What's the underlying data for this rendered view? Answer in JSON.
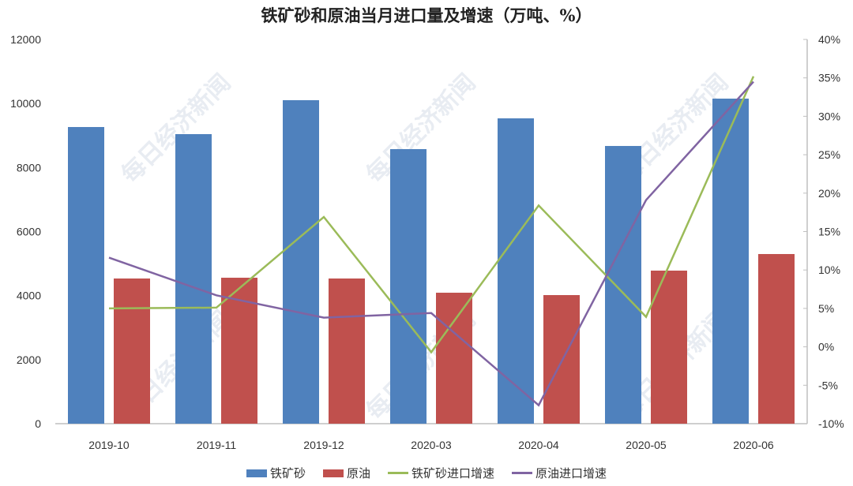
{
  "chart_data": {
    "type": "bar",
    "title": "铁矿砂和原油当月进口量及增速（万吨、%）",
    "categories": [
      "2019-10",
      "2019-11",
      "2019-12",
      "2020-03",
      "2020-04",
      "2020-05",
      "2020-06"
    ],
    "series": [
      {
        "name": "铁矿砂",
        "type": "bar",
        "axis": "left",
        "color": "#4F81BD",
        "values": [
          9265,
          9043,
          10103,
          8575,
          9536,
          8673,
          10152
        ]
      },
      {
        "name": "原油",
        "type": "bar",
        "axis": "left",
        "color": "#C0504D",
        "values": [
          4534,
          4558,
          4534,
          4090,
          4016,
          4780,
          5298
        ]
      },
      {
        "name": "铁矿砂进口增速",
        "type": "line",
        "axis": "right",
        "color": "#9BBB59",
        "values": [
          5.0,
          5.1,
          16.9,
          -0.7,
          18.4,
          3.9,
          35.2
        ]
      },
      {
        "name": "原油进口增速",
        "type": "line",
        "axis": "right",
        "color": "#8064A2",
        "values": [
          11.6,
          6.7,
          3.8,
          4.4,
          -7.6,
          19.1,
          34.5
        ]
      }
    ],
    "left_axis": {
      "ylim": [
        0,
        12000
      ],
      "ticks": [
        "0",
        "2000",
        "4000",
        "6000",
        "8000",
        "10000",
        "12000"
      ]
    },
    "right_axis": {
      "ylim": [
        -10,
        40
      ],
      "ticks": [
        "-10%",
        "-5%",
        "0%",
        "5%",
        "10%",
        "15%",
        "20%",
        "25%",
        "30%",
        "35%",
        "40%"
      ]
    },
    "xlabel": "",
    "ylabel": "",
    "grid": false,
    "legend_position": "bottom",
    "watermark": "每日经济新闻"
  },
  "legend": [
    {
      "label": "铁矿砂",
      "color": "#4F81BD",
      "kind": "bar"
    },
    {
      "label": "原油",
      "color": "#C0504D",
      "kind": "bar"
    },
    {
      "label": "铁矿砂进口增速",
      "color": "#9BBB59",
      "kind": "line"
    },
    {
      "label": "原油进口增速",
      "color": "#8064A2",
      "kind": "line"
    }
  ]
}
